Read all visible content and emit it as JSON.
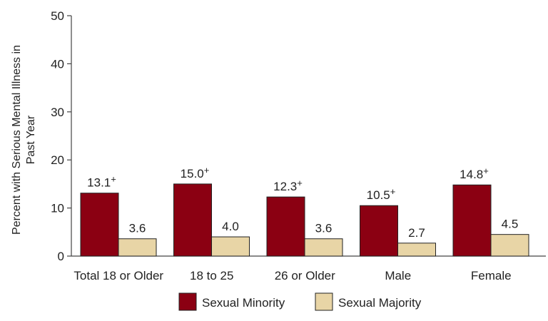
{
  "chart_data": {
    "type": "bar",
    "ylabel": "Percent with Serious Mental Illness in Past Year",
    "ylabel_lines": [
      "Percent with Serious Mental Illness in",
      "Past Year"
    ],
    "xlabel": "",
    "ylim": [
      0,
      50
    ],
    "yticks": [
      0,
      10,
      20,
      30,
      40,
      50
    ],
    "categories": [
      "Total 18 or Older",
      "18 to 25",
      "26 or Older",
      "Male",
      "Female"
    ],
    "series": [
      {
        "name": "Sexual Minority",
        "color": "#8B0012",
        "values": [
          13.1,
          15.0,
          12.3,
          10.5,
          14.8
        ],
        "labels": [
          "13.1",
          "15.0",
          "12.3",
          "10.5",
          "14.8"
        ],
        "marker": "+"
      },
      {
        "name": "Sexual Majority",
        "color": "#E8D5A6",
        "values": [
          3.6,
          4.0,
          3.6,
          2.7,
          4.5
        ],
        "labels": [
          "3.6",
          "4.0",
          "3.6",
          "2.7",
          "4.5"
        ],
        "marker": ""
      }
    ],
    "grid": false,
    "legend_position": "bottom"
  }
}
